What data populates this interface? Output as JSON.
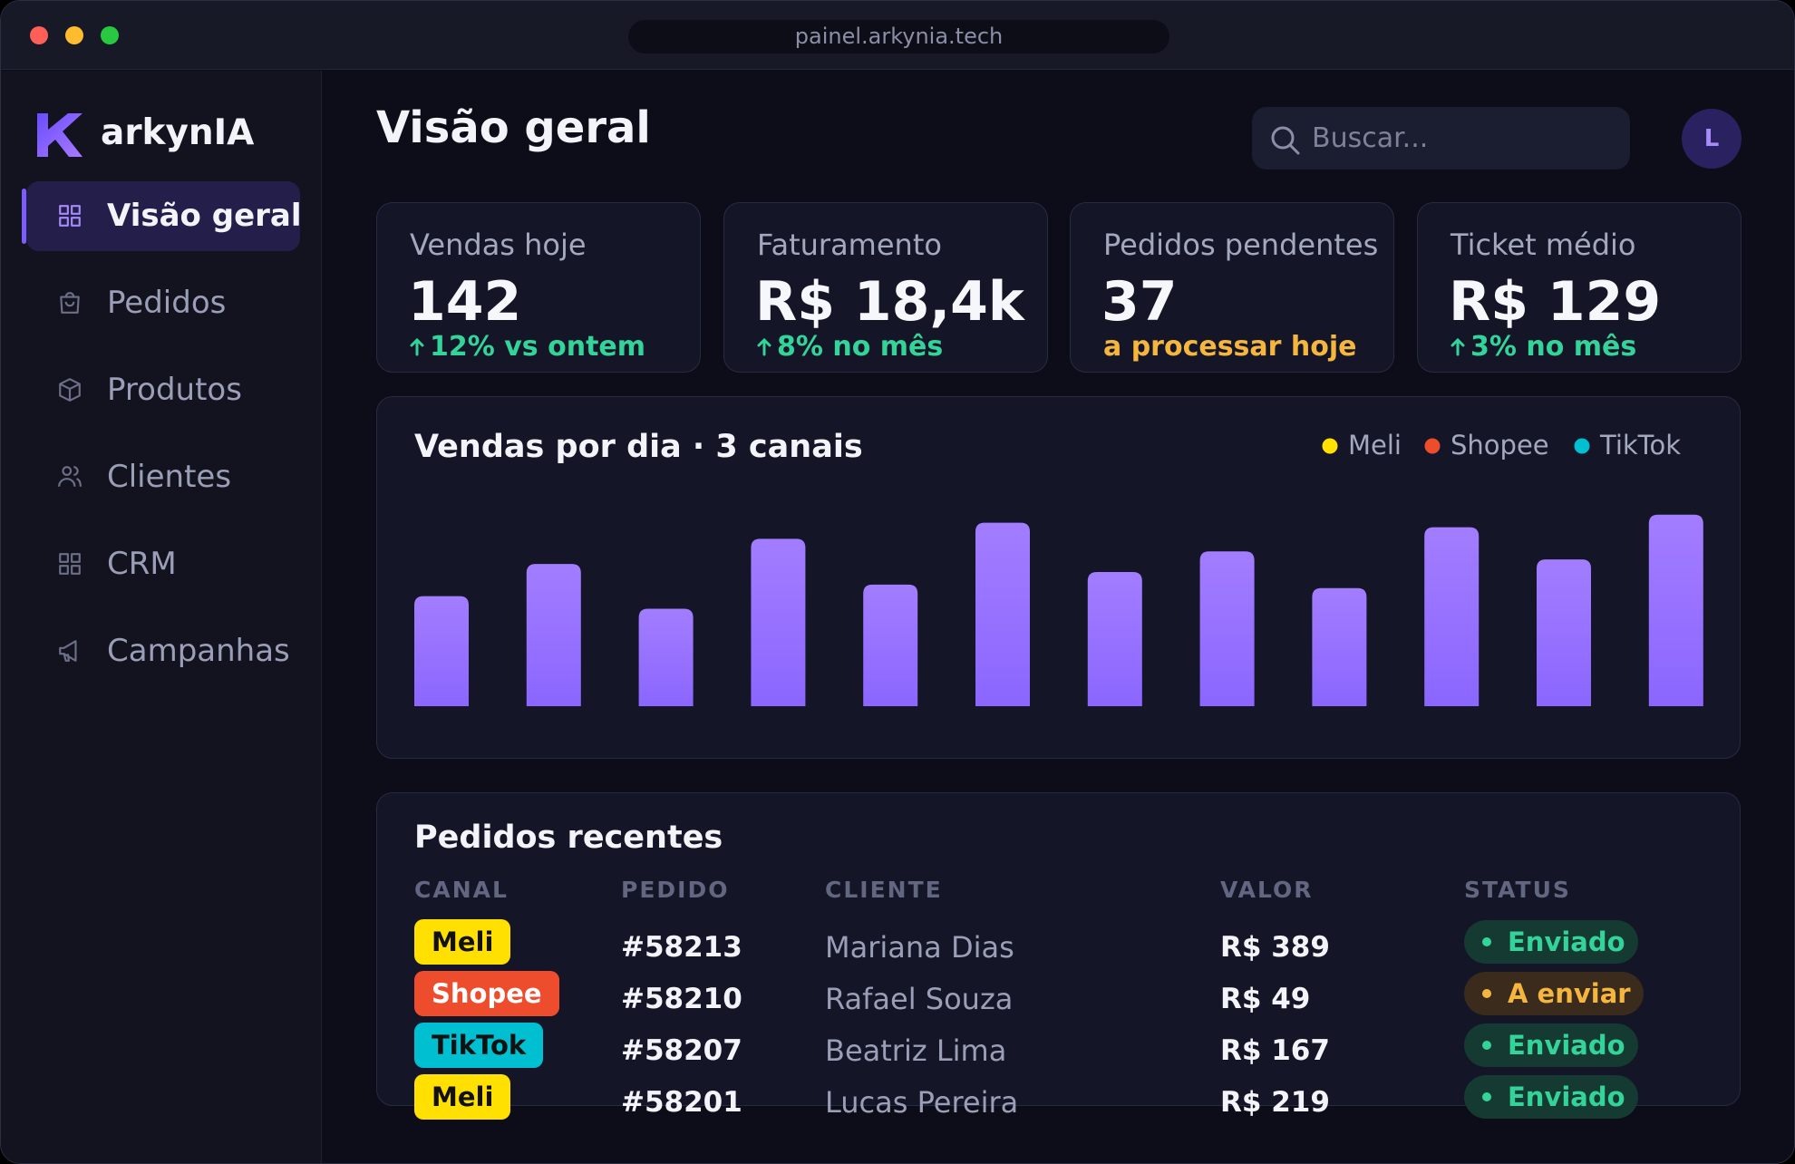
{
  "window": {
    "url": "painel.arkynia.tech"
  },
  "sidebar": {
    "brand": "arkynIA",
    "active": 0,
    "items": [
      "Visão geral",
      "Pedidos",
      "Produtos",
      "Clientes",
      "CRM",
      "Campanhas"
    ]
  },
  "header": {
    "title": "Visão geral",
    "search_placeholder": "Buscar...",
    "avatar": "L"
  },
  "kpis": [
    {
      "label": "Vendas hoje",
      "value": 142,
      "note": "12% vs ontem",
      "tone": "up"
    },
    {
      "label": "Faturamento",
      "value": "R$ 18,4k",
      "note": "8% no mês",
      "tone": "up"
    },
    {
      "label": "Pedidos pendentes",
      "value": 37,
      "note": "a processar hoje",
      "tone": "warn"
    },
    {
      "label": "Ticket médio",
      "value": "R$ 129",
      "note": "3% no mês",
      "tone": "up"
    }
  ],
  "chart_data": {
    "type": "bar",
    "title": "Vendas por dia · 3 canais",
    "values": [
      96,
      124,
      85,
      146,
      106,
      160,
      117,
      135,
      103,
      156,
      128,
      167
    ],
    "color": "#8b66ff",
    "ylim": [
      0,
      185
    ],
    "legend": [
      {
        "name": "Meli",
        "color": "#ffe000"
      },
      {
        "name": "Shopee",
        "color": "#ee4d2d"
      },
      {
        "name": "TikTok",
        "color": "#00bfd0"
      }
    ]
  },
  "orders": {
    "title": "Pedidos recentes",
    "columns": [
      "CANAL",
      "PEDIDO",
      "CLIENTE",
      "VALOR",
      "STATUS"
    ],
    "rows": [
      {
        "channel": "Meli",
        "order": "#58213",
        "client": "Mariana Dias",
        "amount": "R$ 389",
        "status": "Enviado",
        "status_tone": "ok"
      },
      {
        "channel": "Shopee",
        "order": "#58210",
        "client": "Rafael Souza",
        "amount": "R$ 49",
        "status": "A enviar",
        "status_tone": "pending"
      },
      {
        "channel": "TikTok",
        "order": "#58207",
        "client": "Beatriz Lima",
        "amount": "R$ 167",
        "status": "Enviado",
        "status_tone": "ok"
      },
      {
        "channel": "Meli",
        "order": "#58201",
        "client": "Lucas Pereira",
        "amount": "R$ 219",
        "status": "Enviado",
        "status_tone": "ok"
      }
    ]
  }
}
